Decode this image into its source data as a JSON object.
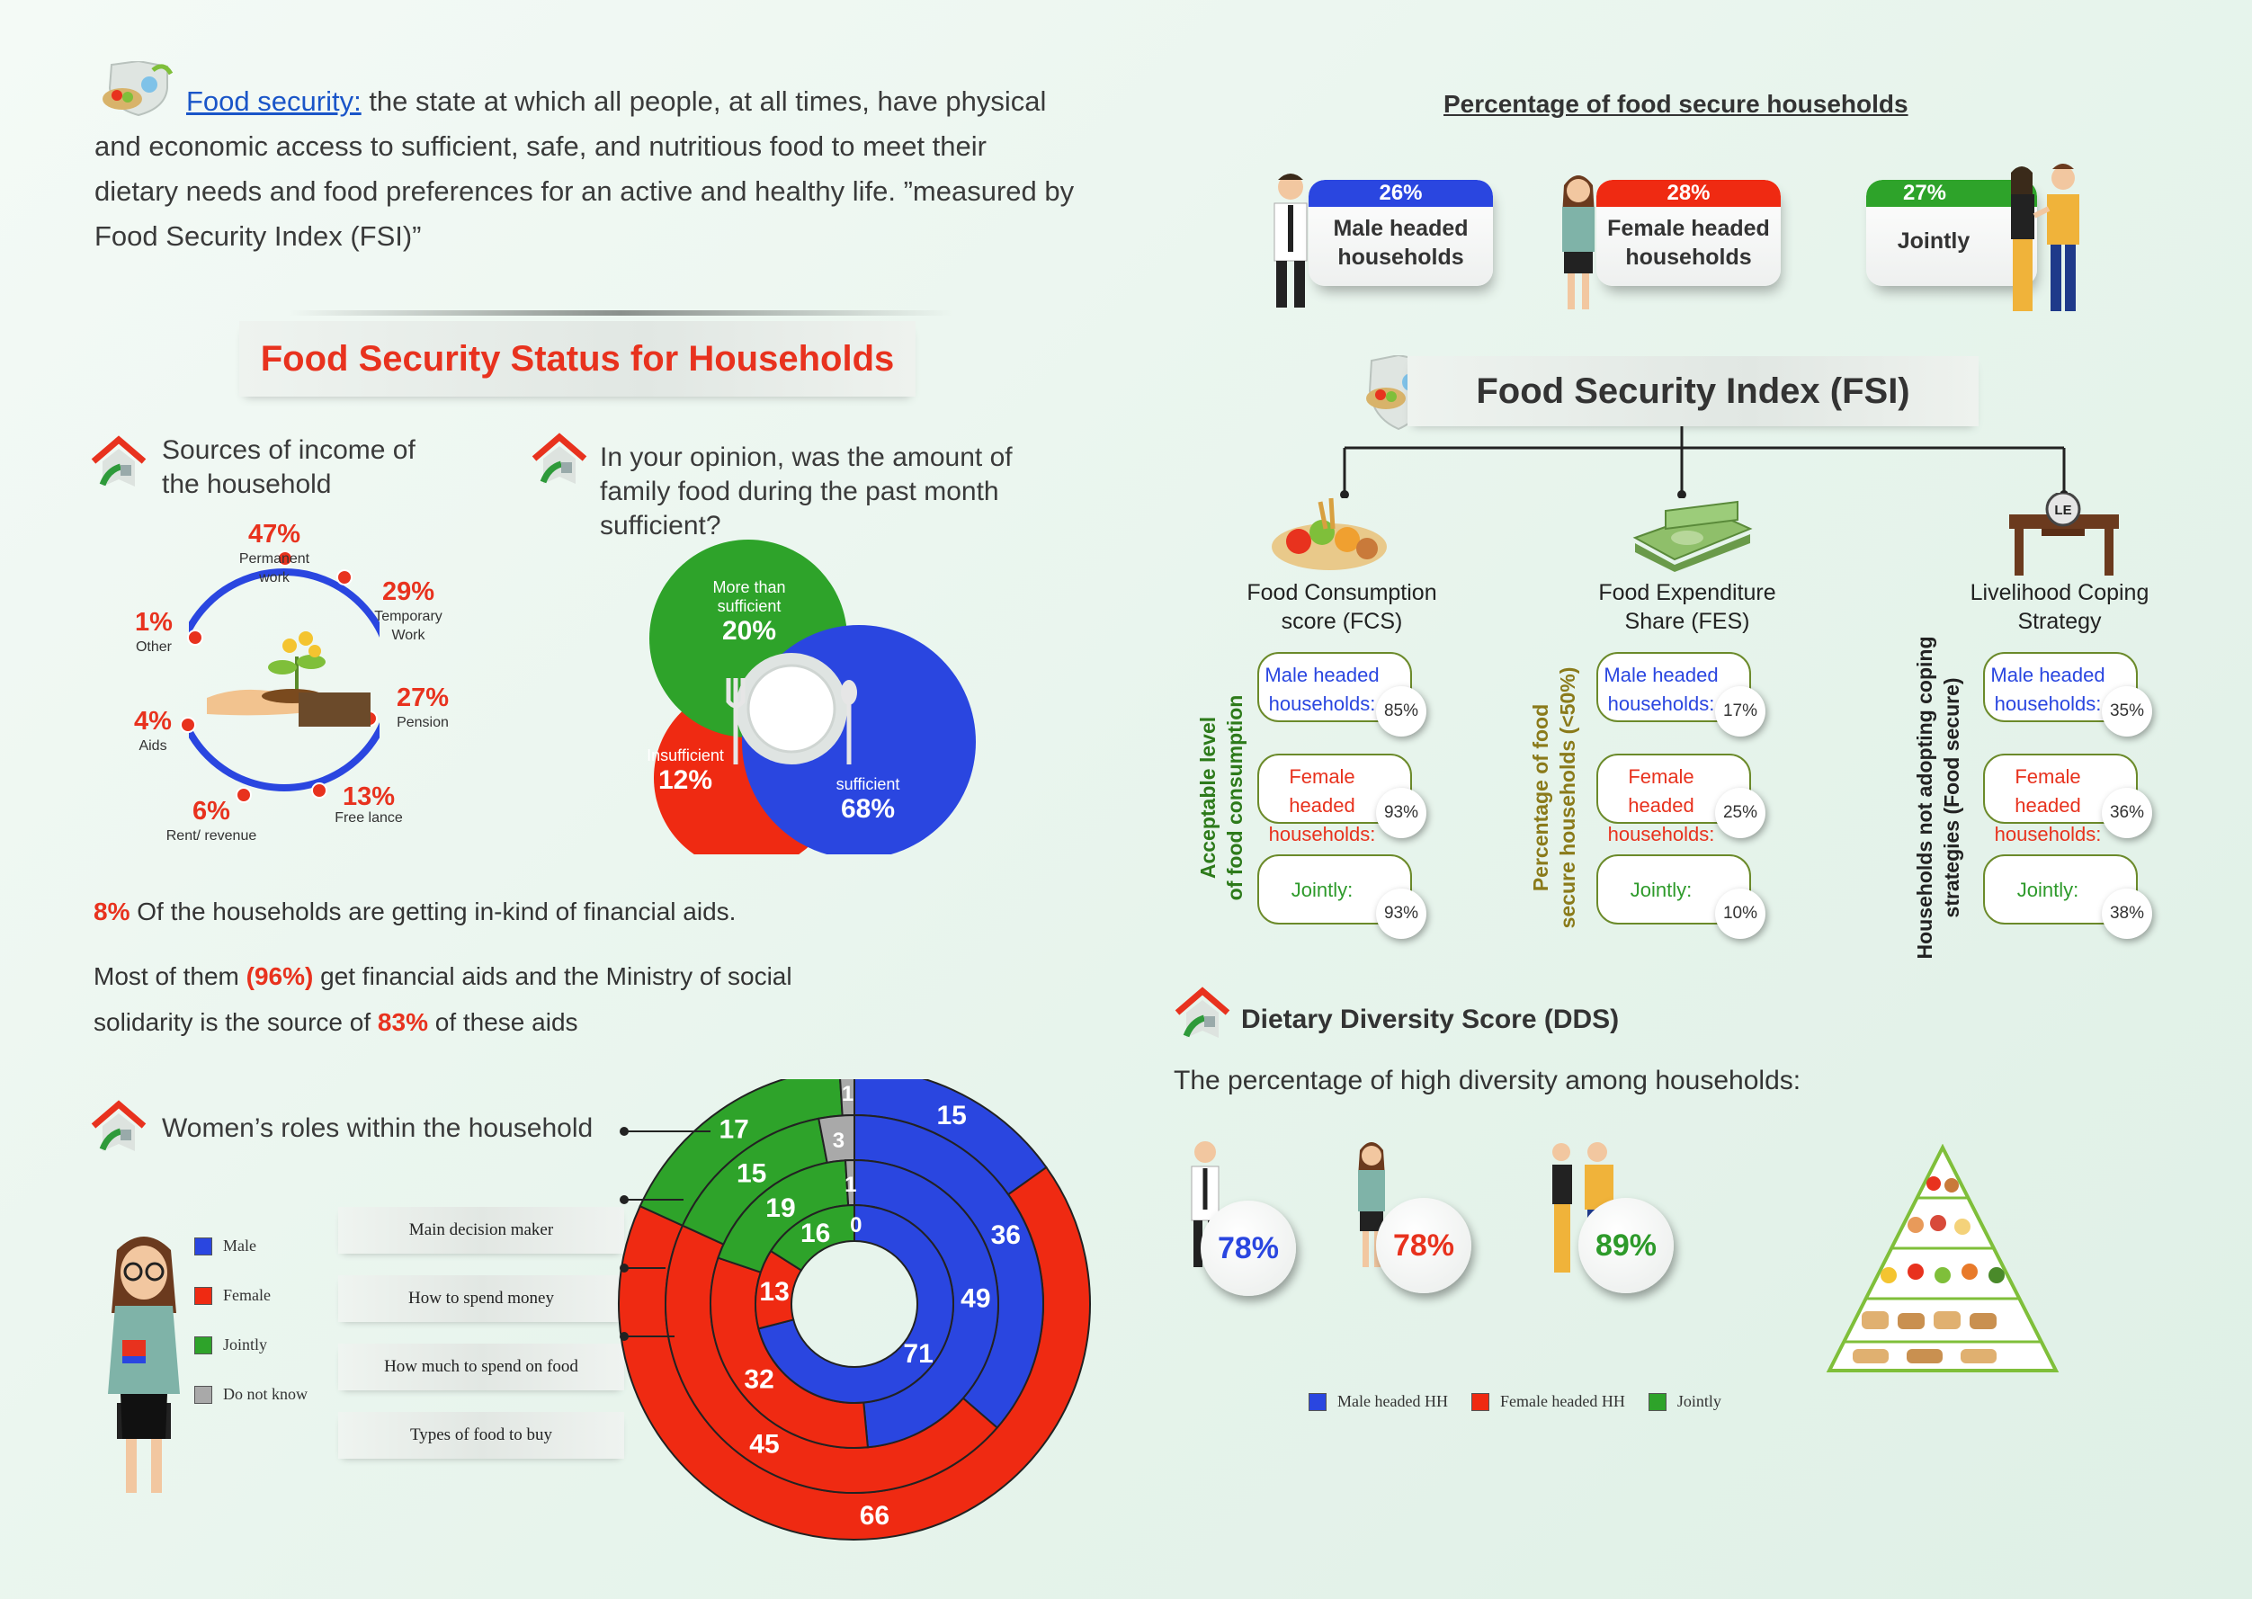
{
  "intro": {
    "term": "Food security:",
    "definition": " the state at which all people, at all times, have physical and economic access to sufficient, safe, and nutritious food to meet their dietary needs and food preferences for an active and healthy life. ”measured by Food Security Index (FSI)”"
  },
  "status_title": "Food Security Status for Households",
  "income": {
    "title_line1": "Sources of income of",
    "title_line2": "the household",
    "items": [
      {
        "value": "47%",
        "label1": "Permanent",
        "label2": "work"
      },
      {
        "value": "29%",
        "label1": "Temporary",
        "label2": "Work"
      },
      {
        "value": "27%",
        "label1": "Pension",
        "label2": ""
      },
      {
        "value": "13%",
        "label1": "Free lance",
        "label2": ""
      },
      {
        "value": "6%",
        "label1": "Rent/ revenue",
        "label2": ""
      },
      {
        "value": "4%",
        "label1": "Aids",
        "label2": ""
      },
      {
        "value": "1%",
        "label1": "Other",
        "label2": ""
      }
    ]
  },
  "sufficiency": {
    "q1": "In your opinion, was the amount of",
    "q2": "family food during the past month",
    "q3": "sufficient?",
    "more_label1": "More  than",
    "more_label2": "sufficient",
    "more_value": "20%",
    "insufficient_label": "Insufficient",
    "insufficient_value": "12%",
    "sufficient_label": "sufficient",
    "sufficient_value": "68%"
  },
  "aids": {
    "p1_value": "8%",
    "p1_text": " Of the households are getting in-kind of financial aids.",
    "p2_a": "Most of them ",
    "p2_value": "(96%)",
    "p2_b": " get financial aids and the Ministry of social",
    "p3_a": "solidarity is the source of ",
    "p3_value": "83%",
    "p3_b": " of these aids"
  },
  "roles": {
    "title": "Women’s roles within the household",
    "legend": [
      "Male",
      "Female",
      "Jointly",
      "Do not know"
    ],
    "labels": [
      "Main decision maker",
      "How to spend money",
      "How much to spend on food",
      "Types of food to buy"
    ]
  },
  "colors": {
    "male": "#2a46e0",
    "female": "#ef2a12",
    "jointly": "#2ea32a",
    "dontknow": "#a9a9a9",
    "red": "#e8321e"
  },
  "roles_chart_data": {
    "type": "donut-rings",
    "rings": [
      {
        "label": "Main decision maker",
        "male": 15,
        "female": 66,
        "jointly": 17,
        "dontknow": 1
      },
      {
        "label": "How to spend money",
        "male": 36,
        "female": 45,
        "jointly": 15,
        "dontknow": 3
      },
      {
        "label": "How much to spend on food",
        "male": 49,
        "female": 32,
        "jointly": 19,
        "dontknow": 1
      },
      {
        "label": "Types of food to buy",
        "male": 71,
        "female": 13,
        "jointly": 16,
        "dontknow": 0
      }
    ]
  },
  "food_secure": {
    "title": "Percentage of food secure households",
    "male": {
      "value": "26%",
      "line1": "Male headed",
      "line2": "households"
    },
    "female": {
      "value": "28%",
      "line1": "Female headed",
      "line2": "households"
    },
    "jointly": {
      "value": "27%",
      "line1": "Jointly"
    }
  },
  "fsi": {
    "title": "Food Security Index (FSI)",
    "cols": [
      {
        "h1": "Food Consumption",
        "h2": "score (FCS)",
        "v1": "Acceptable level",
        "v2": "of food consumption",
        "male": "85%",
        "female": "93%",
        "jointly": "93%"
      },
      {
        "h1": "Food Expenditure",
        "h2": "Share (FES)",
        "v1": "Percentage of food",
        "v2": "secure households (<50%)",
        "male": "17%",
        "female": "25%",
        "jointly": "10%"
      },
      {
        "h1": "Livelihood Coping",
        "h2": "Strategy",
        "v1": "Households not adopting coping",
        "v2": "strategies (Food secure)",
        "male": "35%",
        "female": "36%",
        "jointly": "38%"
      }
    ],
    "male_l1": "Male headed",
    "male_l2": "households:",
    "female_l1": "Female headed",
    "female_l2": "households:",
    "jointly_l": "Jointly:",
    "table_sign": "LE"
  },
  "dds": {
    "title": "Dietary Diversity Score (DDS)",
    "subtitle": "The percentage of high diversity among households:",
    "male": "78%",
    "female": "78%",
    "jointly": "89%",
    "legend": [
      "Male headed HH",
      "Female headed HH",
      "Jointly"
    ]
  }
}
